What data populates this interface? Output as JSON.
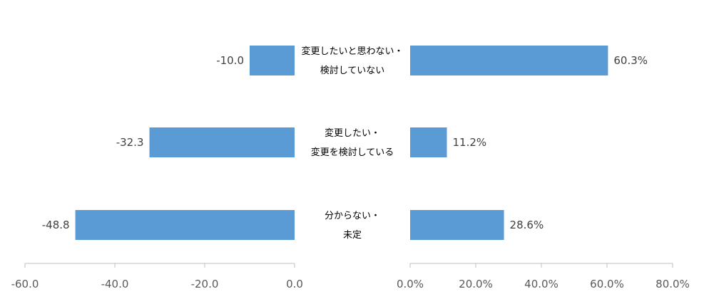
{
  "colors": {
    "bar": "#5B9BD5",
    "axis": "#bfbfbf",
    "text": "#404040",
    "tick": "#595959"
  },
  "chart_data": {
    "type": "bar",
    "orientation": "horizontal",
    "categories": [
      [
        "変更したいと思わない・",
        "検討していない"
      ],
      [
        "変更したい・",
        "変更を検討している"
      ],
      [
        "分からない・",
        "未定"
      ]
    ],
    "panels": [
      {
        "side": "left",
        "values": [
          -10.0,
          -32.3,
          -48.8
        ],
        "labels": [
          "-10.0",
          "-32.3",
          "-48.8"
        ],
        "xlim": [
          -60,
          0
        ],
        "ticks": [
          -60,
          -40,
          -20,
          0
        ],
        "tick_labels": [
          "-60.0",
          "-40.0",
          "-20.0",
          "0.0"
        ]
      },
      {
        "side": "right",
        "values": [
          60.3,
          11.2,
          28.6
        ],
        "labels": [
          "60.3%",
          "11.2%",
          "28.6%"
        ],
        "xlim": [
          0,
          80
        ],
        "ticks": [
          0,
          20,
          40,
          60,
          80
        ],
        "tick_labels": [
          "0.0%",
          "20.0%",
          "40.0%",
          "60.0%",
          "80.0%"
        ]
      }
    ]
  }
}
